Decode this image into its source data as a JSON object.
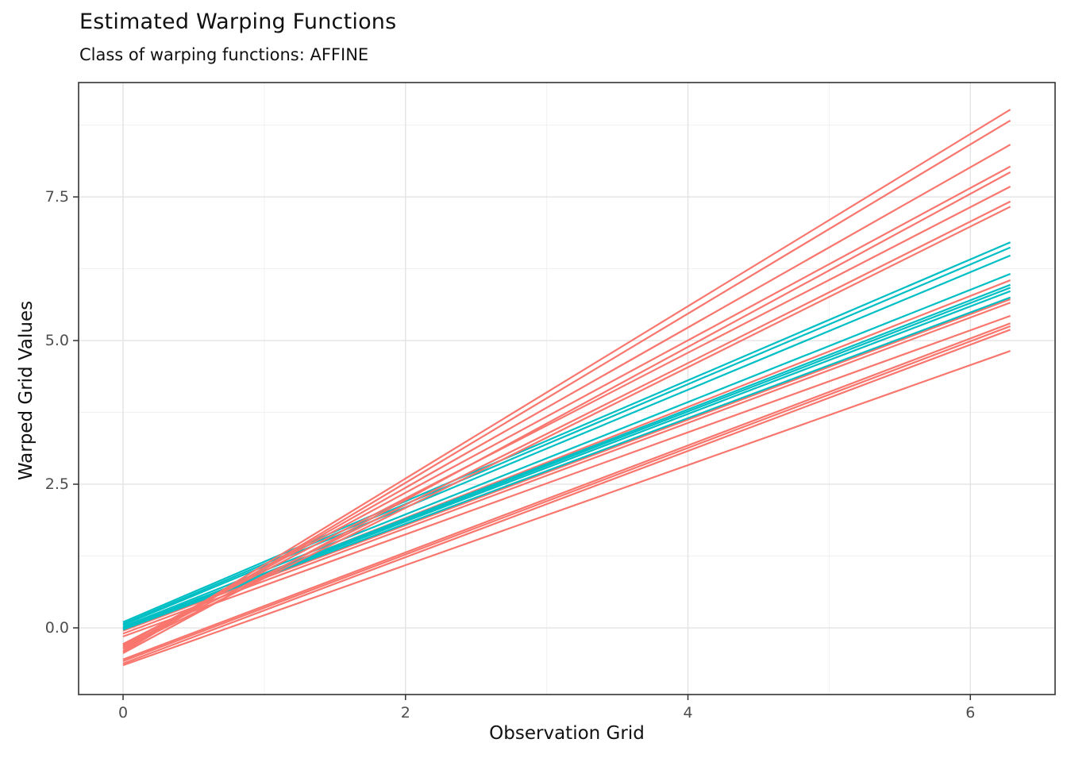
{
  "chart_data": {
    "type": "line",
    "title": "Estimated Warping Functions",
    "subtitle": "Class of warping functions: AFFINE",
    "xlabel": "Observation Grid",
    "ylabel": "Warped Grid Values",
    "xlim": [
      -0.315,
      6.6
    ],
    "ylim": [
      -1.16,
      9.49
    ],
    "x_ticks": [
      {
        "v": 0,
        "label": "0"
      },
      {
        "v": 2,
        "label": "2"
      },
      {
        "v": 4,
        "label": "4"
      },
      {
        "v": 6,
        "label": "6"
      }
    ],
    "y_ticks": [
      {
        "v": 0.0,
        "label": "0.0"
      },
      {
        "v": 2.5,
        "label": "2.5"
      },
      {
        "v": 5.0,
        "label": "5.0"
      },
      {
        "v": 7.5,
        "label": "7.5"
      }
    ],
    "x_minor": [
      1,
      3,
      5
    ],
    "y_minor": [
      1.25,
      3.75,
      6.25,
      8.75
    ],
    "grid": "on",
    "legend": "none",
    "line_model": "straight segment from (x_start, y0) to (x_end, y1)",
    "x_start": 0,
    "x_end": 6.283,
    "colors": {
      "salmon": "#F8766D",
      "teal": "#00BFC4"
    },
    "series": [
      {
        "c": "salmon",
        "y0": -0.02,
        "y1": 6.05
      },
      {
        "c": "salmon",
        "y0": -0.05,
        "y1": 5.72
      },
      {
        "c": "salmon",
        "y0": -0.1,
        "y1": 5.66
      },
      {
        "c": "salmon",
        "y0": -0.15,
        "y1": 5.43
      },
      {
        "c": "salmon",
        "y0": -0.55,
        "y1": 5.3
      },
      {
        "c": "salmon",
        "y0": -0.58,
        "y1": 5.25
      },
      {
        "c": "salmon",
        "y0": -0.62,
        "y1": 5.19
      },
      {
        "c": "salmon",
        "y0": -0.65,
        "y1": 4.82
      },
      {
        "c": "teal",
        "y0": 0.1,
        "y1": 6.71
      },
      {
        "c": "teal",
        "y0": 0.07,
        "y1": 6.62
      },
      {
        "c": "teal",
        "y0": 0.05,
        "y1": 6.48
      },
      {
        "c": "teal",
        "y0": 0.02,
        "y1": 6.16
      },
      {
        "c": "teal",
        "y0": 0.0,
        "y1": 5.97
      },
      {
        "c": "teal",
        "y0": -0.01,
        "y1": 5.92
      },
      {
        "c": "teal",
        "y0": -0.02,
        "y1": 5.86
      },
      {
        "c": "teal",
        "y0": -0.03,
        "y1": 5.75
      },
      {
        "c": "salmon",
        "y0": -0.4,
        "y1": 9.02
      },
      {
        "c": "salmon",
        "y0": -0.42,
        "y1": 8.83
      },
      {
        "c": "salmon",
        "y0": -0.35,
        "y1": 8.41
      },
      {
        "c": "salmon",
        "y0": -0.3,
        "y1": 8.03
      },
      {
        "c": "salmon",
        "y0": -0.44,
        "y1": 7.93
      },
      {
        "c": "salmon",
        "y0": -0.28,
        "y1": 7.68
      },
      {
        "c": "salmon",
        "y0": -0.32,
        "y1": 7.42
      },
      {
        "c": "salmon",
        "y0": -0.36,
        "y1": 7.33
      }
    ],
    "style": {
      "panel_bg": "#ffffff",
      "panel_border": "#333333",
      "grid_major": "#e3e3e3",
      "grid_minor": "#f1f1f1",
      "tick_color": "#333333",
      "tick_label_color": "#4d4d4d",
      "text_color": "#111111"
    }
  }
}
